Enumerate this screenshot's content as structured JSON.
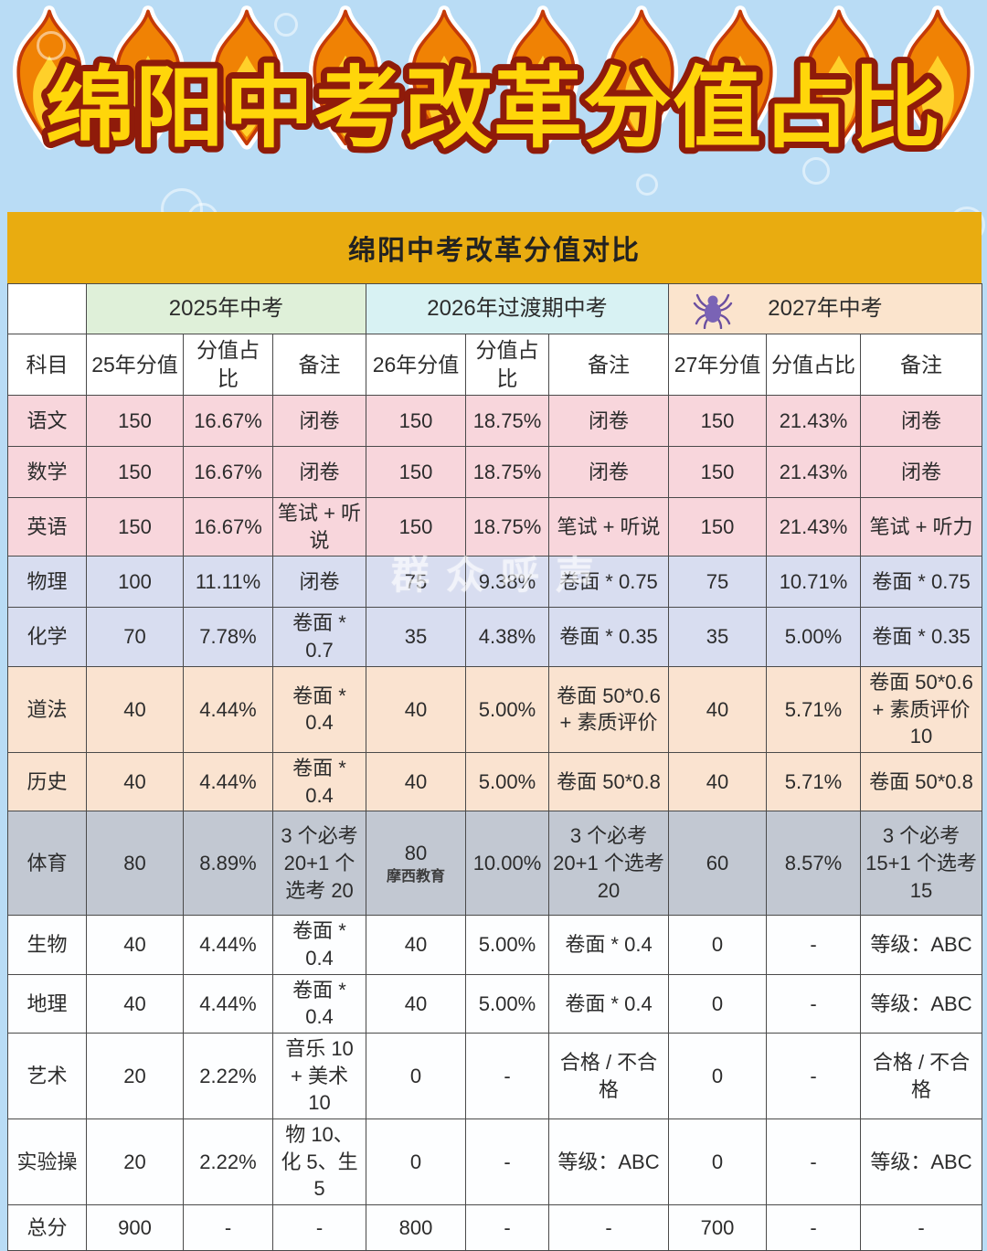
{
  "page": {
    "main_title": "绵阳中考改革分值占比",
    "center_watermark": "群众呼声"
  },
  "colors": {
    "page_background": "#b9dcf5",
    "banner_gold": "#e9ac10",
    "title_fill": "#ffd60a",
    "title_stroke": "#8f1b0a",
    "group_2025_bg": "#dff0d9",
    "group_2026_bg": "#d8f2f3",
    "group_2027_bg": "#fbe4cd",
    "row_pink": "#f8d6dc",
    "row_periwinkle": "#d8ddf0",
    "row_peach": "#fae3d0",
    "row_gray": "#c2c8d2",
    "row_white": "#fdfeff",
    "flame_orange": "#f08204",
    "flame_inner_yellow": "#ffd02a"
  },
  "table": {
    "title": "绵阳中考改革分值对比",
    "groups": [
      {
        "label": "2025年中考"
      },
      {
        "label": "2026年过渡期中考"
      },
      {
        "label": "2027年中考",
        "icon": "spider-icon"
      }
    ],
    "columns": [
      "科目",
      "25年分值",
      "分值占比",
      "备注",
      "26年分值",
      "分值占比",
      "备注",
      "27年分值",
      "分值占比",
      "备注"
    ],
    "rows": [
      {
        "theme": "pink",
        "cells": [
          "语文",
          "150",
          "16.67%",
          "闭卷",
          "150",
          "18.75%",
          "闭卷",
          "150",
          "21.43%",
          "闭卷"
        ]
      },
      {
        "theme": "pink",
        "cells": [
          "数学",
          "150",
          "16.67%",
          "闭卷",
          "150",
          "18.75%",
          "闭卷",
          "150",
          "21.43%",
          "闭卷"
        ]
      },
      {
        "theme": "pink",
        "cells": [
          "英语",
          "150",
          "16.67%",
          "笔试 + 听说",
          "150",
          "18.75%",
          "笔试 + 听说",
          "150",
          "21.43%",
          "笔试 + 听力"
        ]
      },
      {
        "theme": "periwinkle",
        "cells": [
          "物理",
          "100",
          "11.11%",
          "闭卷",
          "75",
          "9.38%",
          "卷面 * 0.75",
          "75",
          "10.71%",
          "卷面 * 0.75"
        ]
      },
      {
        "theme": "periwinkle",
        "cells": [
          "化学",
          "70",
          "7.78%",
          "卷面 * 0.7",
          "35",
          "4.38%",
          "卷面 * 0.35",
          "35",
          "5.00%",
          "卷面 * 0.35"
        ]
      },
      {
        "theme": "peach",
        "cells": [
          "道法",
          "40",
          "4.44%",
          "卷面 * 0.4",
          "40",
          "5.00%",
          "卷面 50*0.6 + 素质评价",
          "40",
          "5.71%",
          "卷面 50*0.6 + 素质评价 10"
        ]
      },
      {
        "theme": "peach",
        "cells": [
          "历史",
          "40",
          "4.44%",
          "卷面 * 0.4",
          "40",
          "5.00%",
          "卷面 50*0.8",
          "40",
          "5.71%",
          "卷面 50*0.8"
        ]
      },
      {
        "theme": "gray",
        "cells": [
          "体育",
          "80",
          "8.89%",
          "3 个必考 20+1 个选考 20",
          "80",
          "10.00%",
          "3 个必考 20+1 个选考 20",
          "60",
          "8.57%",
          "3 个必考 15+1 个选考 15"
        ],
        "cell_sub": {
          "index": 4,
          "text": "摩西教育"
        }
      },
      {
        "theme": "white",
        "cells": [
          "生物",
          "40",
          "4.44%",
          "卷面 * 0.4",
          "40",
          "5.00%",
          "卷面 * 0.4",
          "0",
          "-",
          "等级：ABC"
        ]
      },
      {
        "theme": "white",
        "cells": [
          "地理",
          "40",
          "4.44%",
          "卷面 * 0.4",
          "40",
          "5.00%",
          "卷面 * 0.4",
          "0",
          "-",
          "等级：ABC"
        ]
      },
      {
        "theme": "white",
        "cells": [
          "艺术",
          "20",
          "2.22%",
          "音乐 10 + 美术 10",
          "0",
          "-",
          "合格 / 不合格",
          "0",
          "-",
          "合格 / 不合格"
        ]
      },
      {
        "theme": "white",
        "cells": [
          "实验操",
          "20",
          "2.22%",
          "物 10、化 5、生 5",
          "0",
          "-",
          "等级：ABC",
          "0",
          "-",
          "等级：ABC"
        ]
      },
      {
        "theme": "white",
        "cells": [
          "总分",
          "900",
          "-",
          "-",
          "800",
          "-",
          "-",
          "700",
          "-",
          "-"
        ]
      }
    ]
  }
}
